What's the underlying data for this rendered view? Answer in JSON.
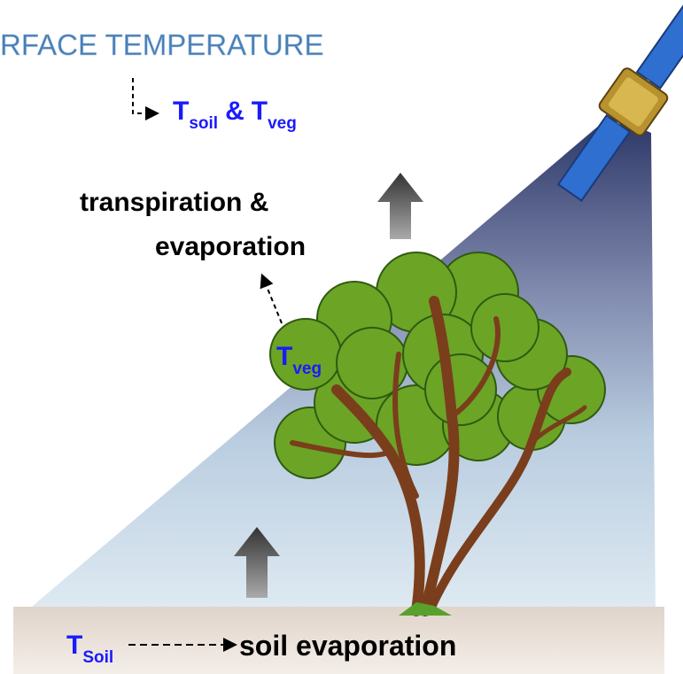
{
  "header": {
    "title": "RFACE TEMPERATURE"
  },
  "retrieval": {
    "t1": "T",
    "t1_sub": "soil",
    "joiner": "&",
    "t2": "T",
    "t2_sub": "veg"
  },
  "canopy_flux": {
    "line1": "transpiration &",
    "line2": "evaporation"
  },
  "canopy_temp": {
    "symbol": "T",
    "sub": "veg"
  },
  "ground": {
    "symbol": "T",
    "sub": "Soil",
    "flux": "soil evaporation"
  }
}
